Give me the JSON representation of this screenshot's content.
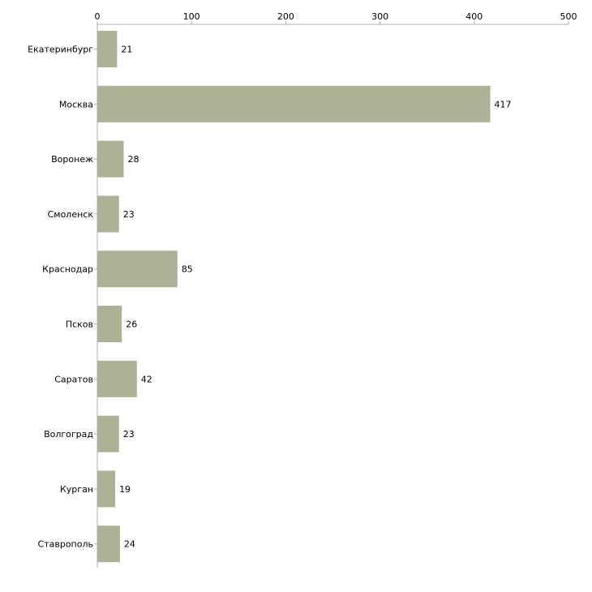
{
  "chart_data": {
    "type": "bar",
    "orientation": "horizontal",
    "title": "",
    "xlabel": "",
    "ylabel": "",
    "xlim": [
      0,
      500
    ],
    "xticks": [
      0,
      100,
      200,
      300,
      400,
      500
    ],
    "xtick_labels": [
      "0",
      "100",
      "200",
      "300",
      "400",
      "500"
    ],
    "axis_position": "top",
    "grid": false,
    "legend": "none",
    "categories": [
      "Екатеринбург",
      "Москва",
      "Воронеж",
      "Смоленск",
      "Краснодар",
      "Псков",
      "Саратов",
      "Волгоград",
      "Курган",
      "Ставрополь"
    ],
    "values": [
      21,
      417,
      28,
      23,
      85,
      26,
      42,
      23,
      19,
      24
    ],
    "value_labels": [
      "21",
      "417",
      "28",
      "23",
      "85",
      "26",
      "42",
      "23",
      "19",
      "24"
    ],
    "bar_color": "#adb297",
    "axis_color": "#b0b0b0"
  }
}
